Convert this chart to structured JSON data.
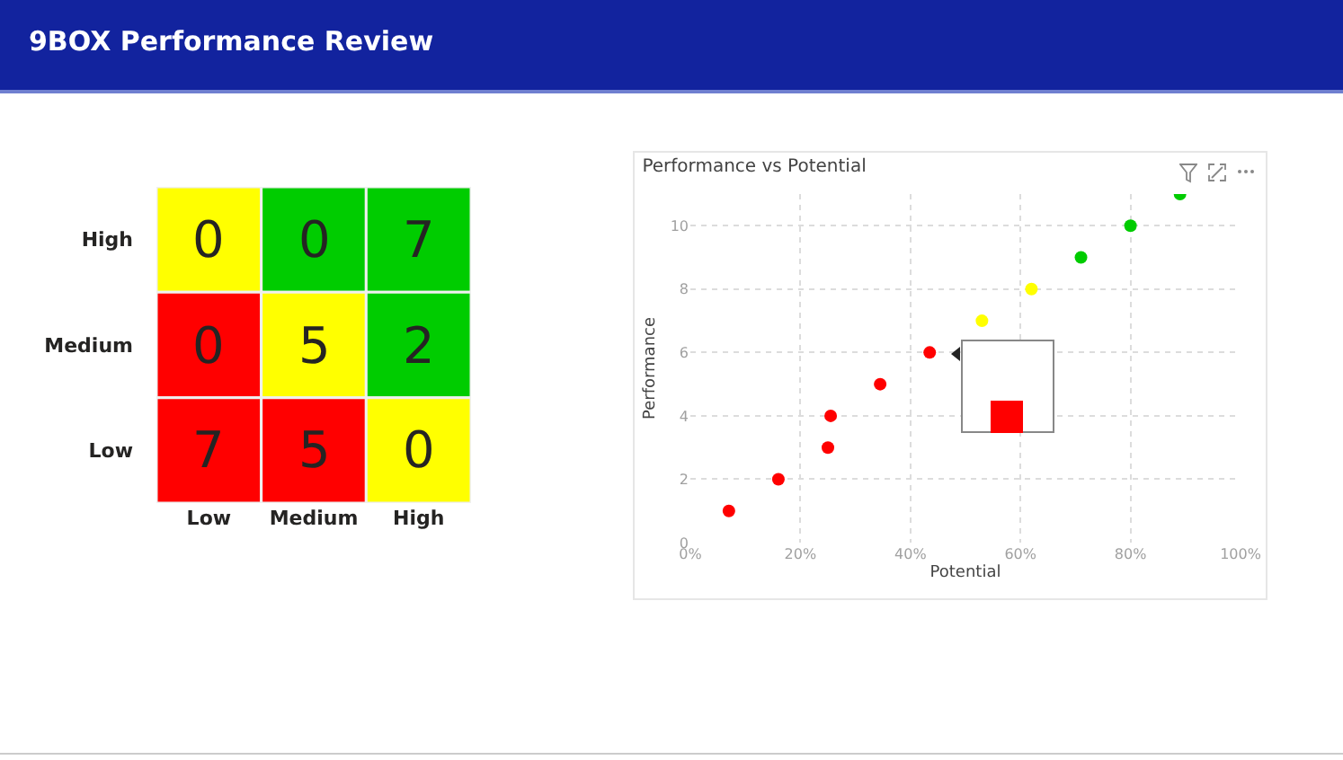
{
  "chart_data": [
    {
      "type": "heatmap",
      "title": "9BOX Performance Review",
      "categories": [
        "Low",
        "Medium",
        "High"
      ],
      "y_categories": [
        "High",
        "Medium",
        "Low"
      ],
      "cells": [
        [
          0,
          0,
          7
        ],
        [
          0,
          5,
          2
        ],
        [
          7,
          5,
          0
        ]
      ],
      "colors": [
        [
          "#ffff00",
          "#00cc00",
          "#00cc00"
        ],
        [
          "#ff0000",
          "#ffff00",
          "#00cc00"
        ],
        [
          "#ff0000",
          "#ff0000",
          "#ffff00"
        ]
      ],
      "data_labels": true
    },
    {
      "type": "scatter",
      "title": "Performance vs Potential",
      "xlabel": "Potential",
      "ylabel": "Performance",
      "x": [
        0.07,
        0.16,
        0.25,
        0.255,
        0.345,
        0.435,
        0.53,
        0.62,
        0.71,
        0.8,
        0.89
      ],
      "values": [
        1,
        2,
        3,
        4,
        5,
        6,
        7,
        8,
        9,
        10,
        11
      ],
      "colors": [
        "#ff0000",
        "#ff0000",
        "#ff0000",
        "#ff0000",
        "#ff0000",
        "#ff0000",
        "#ffff00",
        "#ffff00",
        "#00cc00",
        "#00cc00",
        "#00cc00"
      ],
      "xlim": [
        0,
        1
      ],
      "xticks": [
        {
          "value": 0,
          "label": "0%"
        },
        {
          "value": 0.2,
          "label": "20%"
        },
        {
          "value": 0.4,
          "label": "40%"
        },
        {
          "value": 0.6,
          "label": "60%"
        },
        {
          "value": 0.8,
          "label": "80%"
        },
        {
          "value": 1,
          "label": "100%"
        }
      ],
      "ylim": [
        0,
        11
      ],
      "yticks": [
        0,
        2,
        4,
        6,
        8,
        10
      ],
      "grid": true,
      "marker": "circle"
    }
  ]
}
